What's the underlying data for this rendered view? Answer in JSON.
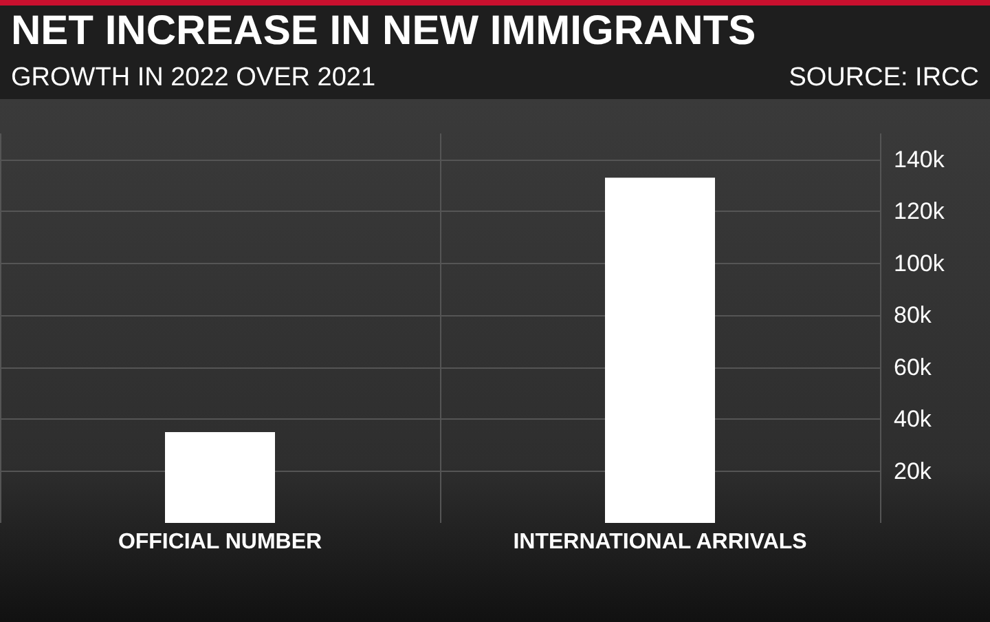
{
  "chart_data": {
    "type": "bar",
    "title": "NET INCREASE IN NEW IMMIGRANTS",
    "subtitle": "GROWTH IN 2022 OVER 2021",
    "annotations": [
      "SOURCE: IRCC"
    ],
    "categories": [
      "OFFICIAL NUMBER",
      "INTERNATIONAL ARRIVALS"
    ],
    "values": [
      35000,
      133000
    ],
    "color": "#ffffff",
    "ylim": [
      0,
      150000
    ],
    "yticks": [
      {
        "value": 20000,
        "label": "20k"
      },
      {
        "value": 40000,
        "label": "40k"
      },
      {
        "value": 60000,
        "label": "60k"
      },
      {
        "value": 80000,
        "label": "80k"
      },
      {
        "value": 100000,
        "label": "100k"
      },
      {
        "value": 120000,
        "label": "120k"
      },
      {
        "value": 140000,
        "label": "140k"
      }
    ],
    "grid": true
  }
}
